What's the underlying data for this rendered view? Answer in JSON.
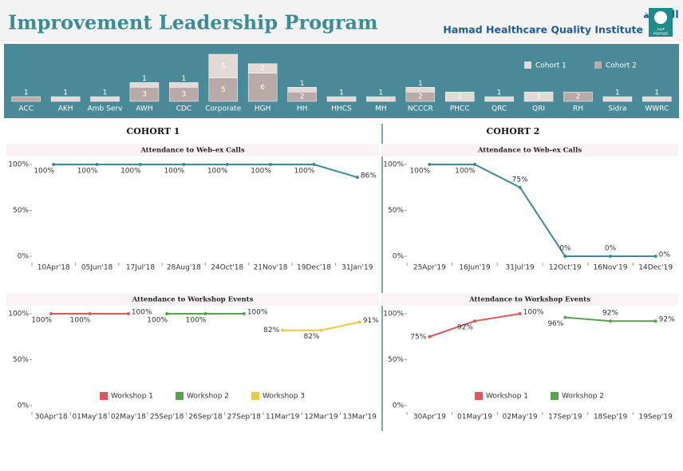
{
  "header": {
    "title": "Improvement Leadership Program",
    "org_arabic": "معهد حمد لجودة الرعاية الصحية",
    "org_english": "Hamad Healthcare Quality Institute",
    "logo_arabic": "حمد",
    "logo_english": "Hamad",
    "sections": [
      "COHORT 1",
      "COHORT 2"
    ]
  },
  "chart_data": [
    {
      "type": "stacked-bar",
      "categories": [
        "ACC",
        "AKH",
        "Amb Serv",
        "AWH",
        "CDC",
        "Corporate",
        "HGH",
        "HH",
        "HHCS",
        "MH",
        "NCCCR",
        "PHCC",
        "QRC",
        "QRI",
        "RH",
        "Sidra",
        "WWRC"
      ],
      "series": [
        {
          "name": "Cohort 1",
          "color": "#e3d9d7",
          "values": [
            null,
            1,
            1,
            1,
            1,
            5,
            2,
            1,
            1,
            1,
            1,
            2,
            1,
            2,
            null,
            1,
            1
          ]
        },
        {
          "name": "Cohort 2",
          "color": "#b9aaa8",
          "values": [
            1,
            null,
            null,
            3,
            3,
            5,
            6,
            2,
            null,
            null,
            2,
            null,
            null,
            null,
            2,
            null,
            null
          ]
        }
      ],
      "legend": "top-right"
    },
    {
      "type": "line",
      "title": "Attendance to Web-ex Calls",
      "categories": [
        "10Apr'18",
        "05Jun'18",
        "17Jul'18",
        "28Aug'18",
        "24Oct'18",
        "21Nov'18",
        "19Dec'18",
        "31Jan'19"
      ],
      "values": [
        100,
        100,
        100,
        100,
        100,
        100,
        100,
        86
      ],
      "value_labels": [
        "100%",
        "100%",
        "100%",
        "100%",
        "100%",
        "100%",
        "100%",
        "86%"
      ],
      "color": "#3b8c96",
      "ylim": [
        0,
        100
      ],
      "yticks": [
        {
          "value": 0,
          "label": "0%"
        },
        {
          "value": 50,
          "label": "50%"
        },
        {
          "value": 100,
          "label": "100%"
        }
      ]
    },
    {
      "type": "line",
      "title": "Attendance to Web-ex Calls",
      "categories": [
        "25Apr'19",
        "16Jun'19",
        "31Jul'19",
        "12Oct'19",
        "16Nov'19",
        "14Dec'19"
      ],
      "values": [
        100,
        100,
        75,
        0,
        0,
        0
      ],
      "value_labels": [
        "100%",
        "100%",
        "75%",
        "0%",
        "0%",
        "0%"
      ],
      "color": "#3b8c96",
      "ylim": [
        0,
        100
      ],
      "yticks": [
        {
          "value": 0,
          "label": "0%"
        },
        {
          "value": 50,
          "label": "50%"
        },
        {
          "value": 100,
          "label": "100%"
        }
      ]
    },
    {
      "type": "line",
      "title": "Attendance to Workshop Events",
      "categories": [
        "30Apr'18",
        "01May'18",
        "02May'18",
        "25Sep'18",
        "26Sep'18",
        "27Sep'18",
        "11Mar'19",
        "12Mar'19",
        "13Mar'19"
      ],
      "series": [
        {
          "name": "Workshop 1",
          "color": "#e15759",
          "values": [
            100,
            100,
            100,
            null,
            null,
            null,
            null,
            null,
            null
          ],
          "value_labels": [
            "100%",
            "100%",
            "100%",
            null,
            null,
            null,
            null,
            null,
            null
          ]
        },
        {
          "name": "Workshop 2",
          "color": "#59a14f",
          "values": [
            null,
            null,
            null,
            100,
            100,
            100,
            null,
            null,
            null
          ],
          "value_labels": [
            null,
            null,
            null,
            "100%",
            "100%",
            "100%",
            null,
            null,
            null
          ]
        },
        {
          "name": "Workshop 3",
          "color": "#edc948",
          "values": [
            null,
            null,
            null,
            null,
            null,
            null,
            82,
            82,
            91
          ],
          "value_labels": [
            null,
            null,
            null,
            null,
            null,
            null,
            "82%",
            "82%",
            "91%"
          ]
        }
      ],
      "ylim": [
        0,
        100
      ],
      "yticks": [
        {
          "value": 0,
          "label": "0%"
        },
        {
          "value": 50,
          "label": "50%"
        },
        {
          "value": 100,
          "label": "100%"
        }
      ],
      "legend": "bottom"
    },
    {
      "type": "line",
      "title": "Attendance to Workshop Events",
      "categories": [
        "30Apr'19",
        "01May'19",
        "02May'19",
        "17Sep'19",
        "18Sep'19",
        "19Sep'19"
      ],
      "series": [
        {
          "name": "Workshop 1",
          "color": "#e15759",
          "values": [
            75,
            92,
            100,
            null,
            null,
            null
          ],
          "value_labels": [
            "75%",
            "92%",
            "100%",
            null,
            null,
            null
          ]
        },
        {
          "name": "Workshop 2",
          "color": "#59a14f",
          "values": [
            null,
            null,
            null,
            96,
            92,
            92
          ],
          "value_labels": [
            null,
            null,
            null,
            "96%",
            "92%",
            "92%"
          ]
        }
      ],
      "ylim": [
        0,
        100
      ],
      "yticks": [
        {
          "value": 0,
          "label": "0%"
        },
        {
          "value": 50,
          "label": "50%"
        },
        {
          "value": 100,
          "label": "100%"
        }
      ],
      "legend": "bottom"
    }
  ]
}
